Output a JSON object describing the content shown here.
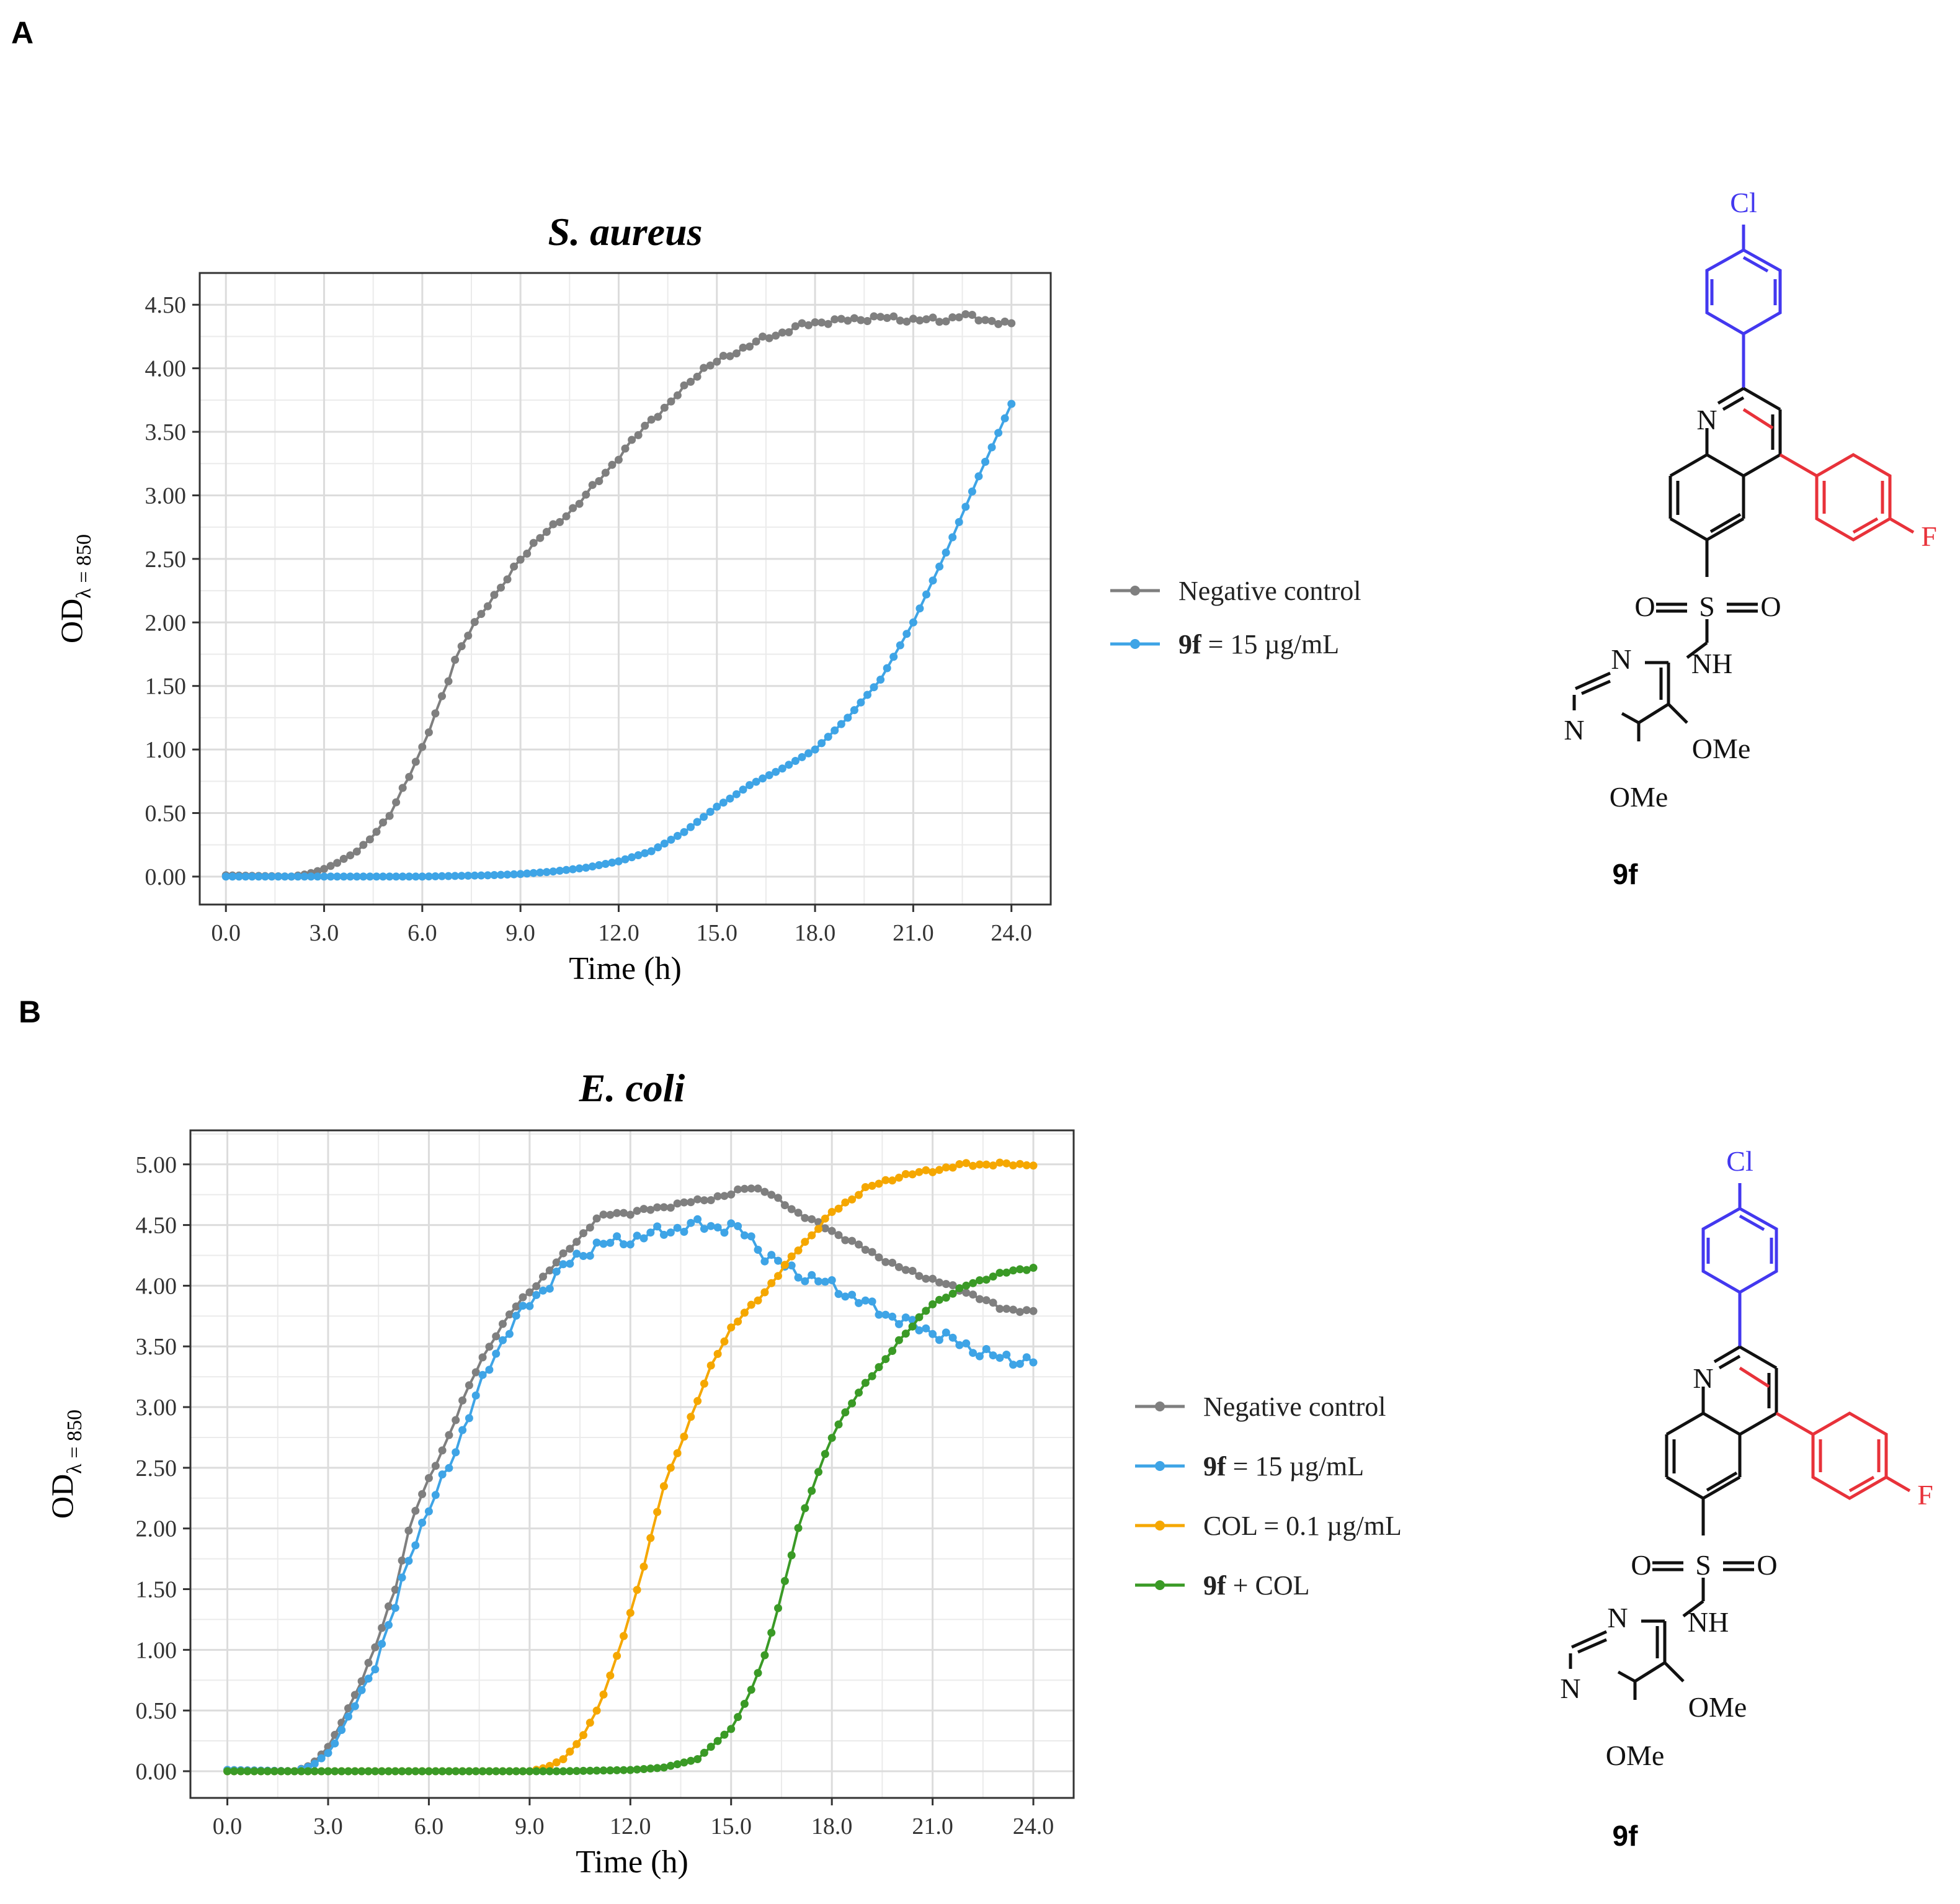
{
  "panels": [
    {
      "letter": "A",
      "compound_label": "9f",
      "chart_data": {
        "type": "line",
        "title": "S. aureus",
        "xlabel": "Time (h)",
        "ylabel_main": "OD",
        "ylabel_sub": "λ = 850",
        "xlim": [
          -0.8,
          25.2
        ],
        "ylim": [
          -0.22,
          4.75
        ],
        "xticks": [
          "0.0",
          "3.0",
          "6.0",
          "9.0",
          "12.0",
          "15.0",
          "18.0",
          "21.0",
          "24.0"
        ],
        "yticks": [
          "0.00",
          "0.50",
          "1.00",
          "1.50",
          "2.00",
          "2.50",
          "3.00",
          "3.50",
          "4.00",
          "4.50"
        ],
        "legend_position": "right",
        "series": [
          {
            "name": "Negative control",
            "color": "#7f7f7f",
            "keypoints": [
              [
                0,
                0.01
              ],
              [
                2,
                0.0
              ],
              [
                2.5,
                0.02
              ],
              [
                3,
                0.06
              ],
              [
                3.5,
                0.12
              ],
              [
                4,
                0.2
              ],
              [
                4.5,
                0.32
              ],
              [
                5,
                0.48
              ],
              [
                5.5,
                0.75
              ],
              [
                6,
                1.0
              ],
              [
                6.5,
                1.35
              ],
              [
                7,
                1.7
              ],
              [
                7.5,
                1.95
              ],
              [
                8,
                2.15
              ],
              [
                8.5,
                2.3
              ],
              [
                9,
                2.5
              ],
              [
                9.5,
                2.65
              ],
              [
                10,
                2.75
              ],
              [
                10.5,
                2.87
              ],
              [
                11,
                3.0
              ],
              [
                11.5,
                3.15
              ],
              [
                12,
                3.3
              ],
              [
                12.5,
                3.45
              ],
              [
                13,
                3.6
              ],
              [
                13.5,
                3.7
              ],
              [
                14,
                3.85
              ],
              [
                14.5,
                3.98
              ],
              [
                15,
                4.05
              ],
              [
                15.5,
                4.12
              ],
              [
                16,
                4.18
              ],
              [
                16.5,
                4.24
              ],
              [
                17,
                4.28
              ],
              [
                17.5,
                4.33
              ],
              [
                18,
                4.36
              ],
              [
                19,
                4.38
              ],
              [
                20,
                4.4
              ],
              [
                21,
                4.38
              ],
              [
                22,
                4.38
              ],
              [
                22.5,
                4.42
              ],
              [
                23,
                4.39
              ],
              [
                23.5,
                4.37
              ],
              [
                24,
                4.34
              ]
            ],
            "noise": 0.02
          },
          {
            "name": "9f = 15 µg/mL",
            "label_bold": "9f",
            "label_rest": " = 15 µg/mL",
            "color": "#3ea4e6",
            "keypoints": [
              [
                0,
                0.0
              ],
              [
                6,
                0.0
              ],
              [
                8,
                0.01
              ],
              [
                9,
                0.02
              ],
              [
                10,
                0.04
              ],
              [
                11,
                0.07
              ],
              [
                12,
                0.12
              ],
              [
                13,
                0.2
              ],
              [
                14,
                0.35
              ],
              [
                15,
                0.55
              ],
              [
                15.5,
                0.63
              ],
              [
                16,
                0.72
              ],
              [
                17,
                0.85
              ],
              [
                18,
                1.0
              ],
              [
                19,
                1.25
              ],
              [
                20,
                1.55
              ],
              [
                21,
                2.0
              ],
              [
                22,
                2.55
              ],
              [
                23,
                3.15
              ],
              [
                24,
                3.72
              ]
            ],
            "noise": 0.0
          }
        ]
      }
    },
    {
      "letter": "B",
      "compound_label": "9f",
      "chart_data": {
        "type": "line",
        "title": "E. coli",
        "xlabel": "Time (h)",
        "ylabel_main": "OD",
        "ylabel_sub": "λ = 850",
        "xlim": [
          -1.1,
          25.2
        ],
        "ylim": [
          -0.22,
          5.28
        ],
        "xticks": [
          "0.0",
          "3.0",
          "6.0",
          "9.0",
          "12.0",
          "15.0",
          "18.0",
          "21.0",
          "24.0"
        ],
        "yticks": [
          "0.00",
          "0.50",
          "1.00",
          "1.50",
          "2.00",
          "2.50",
          "3.00",
          "3.50",
          "4.00",
          "4.50",
          "5.00"
        ],
        "legend_position": "right",
        "series": [
          {
            "name": "Negative control",
            "color": "#7f7f7f",
            "keypoints": [
              [
                0,
                0.01
              ],
              [
                2,
                0.0
              ],
              [
                2.5,
                0.05
              ],
              [
                3,
                0.2
              ],
              [
                3.5,
                0.45
              ],
              [
                4,
                0.75
              ],
              [
                4.5,
                1.1
              ],
              [
                5,
                1.5
              ],
              [
                5.5,
                2.1
              ],
              [
                6,
                2.4
              ],
              [
                6.5,
                2.7
              ],
              [
                7,
                3.05
              ],
              [
                7.5,
                3.35
              ],
              [
                8,
                3.6
              ],
              [
                8.5,
                3.8
              ],
              [
                9,
                3.95
              ],
              [
                9.5,
                4.1
              ],
              [
                10,
                4.25
              ],
              [
                10.5,
                4.4
              ],
              [
                11,
                4.55
              ],
              [
                11.5,
                4.6
              ],
              [
                12,
                4.6
              ],
              [
                13,
                4.65
              ],
              [
                14,
                4.7
              ],
              [
                15,
                4.75
              ],
              [
                15.5,
                4.82
              ],
              [
                16,
                4.78
              ],
              [
                17,
                4.6
              ],
              [
                18,
                4.45
              ],
              [
                19,
                4.3
              ],
              [
                20,
                4.15
              ],
              [
                21,
                4.05
              ],
              [
                22,
                3.95
              ],
              [
                23,
                3.82
              ],
              [
                24,
                3.78
              ]
            ],
            "noise": 0.015
          },
          {
            "name": "9f = 15 µg/mL",
            "label_bold": "9f",
            "label_rest": " = 15 µg/mL",
            "color": "#3ea4e6",
            "keypoints": [
              [
                0,
                0.01
              ],
              [
                2,
                0.0
              ],
              [
                2.5,
                0.04
              ],
              [
                3,
                0.15
              ],
              [
                3.5,
                0.38
              ],
              [
                4,
                0.65
              ],
              [
                4.5,
                0.95
              ],
              [
                5,
                1.35
              ],
              [
                5.5,
                1.85
              ],
              [
                6,
                2.15
              ],
              [
                6.5,
                2.45
              ],
              [
                7,
                2.8
              ],
              [
                7.5,
                3.15
              ],
              [
                8,
                3.45
              ],
              [
                8.5,
                3.7
              ],
              [
                9,
                3.85
              ],
              [
                9.5,
                4.0
              ],
              [
                10,
                4.15
              ],
              [
                10.5,
                4.25
              ],
              [
                11,
                4.33
              ],
              [
                12,
                4.38
              ],
              [
                13,
                4.45
              ],
              [
                14,
                4.5
              ],
              [
                15,
                4.48
              ],
              [
                15.5,
                4.42
              ],
              [
                16,
                4.25
              ],
              [
                17,
                4.1
              ],
              [
                18,
                4.0
              ],
              [
                19,
                3.85
              ],
              [
                20,
                3.72
              ],
              [
                21,
                3.62
              ],
              [
                22,
                3.5
              ],
              [
                23,
                3.4
              ],
              [
                24,
                3.38
              ]
            ],
            "noise": 0.05
          },
          {
            "name": "COL = 0.1 µg/mL",
            "label_bold": "",
            "label_rest": "COL = 0.1 µg/mL",
            "color": "#f5a700",
            "keypoints": [
              [
                0,
                0.0
              ],
              [
                9,
                0.0
              ],
              [
                9.5,
                0.03
              ],
              [
                10,
                0.1
              ],
              [
                10.5,
                0.25
              ],
              [
                11,
                0.5
              ],
              [
                11.5,
                0.85
              ],
              [
                12,
                1.3
              ],
              [
                12.5,
                1.8
              ],
              [
                13,
                2.35
              ],
              [
                13.5,
                2.7
              ],
              [
                14,
                3.05
              ],
              [
                14.5,
                3.4
              ],
              [
                15,
                3.65
              ],
              [
                16,
                3.95
              ],
              [
                17,
                4.3
              ],
              [
                18,
                4.6
              ],
              [
                19,
                4.8
              ],
              [
                20,
                4.9
              ],
              [
                21,
                4.95
              ],
              [
                22,
                5.0
              ],
              [
                23,
                5.0
              ],
              [
                24,
                5.0
              ]
            ],
            "noise": 0.015
          },
          {
            "name": "9f + COL",
            "label_bold": "9f",
            "label_rest": " + COL",
            "color": "#3a9a26",
            "keypoints": [
              [
                0,
                0.0
              ],
              [
                10,
                0.0
              ],
              [
                12,
                0.01
              ],
              [
                13,
                0.03
              ],
              [
                14,
                0.1
              ],
              [
                15,
                0.35
              ],
              [
                15.5,
                0.6
              ],
              [
                16,
                0.95
              ],
              [
                16.5,
                1.45
              ],
              [
                17,
                2.0
              ],
              [
                17.5,
                2.4
              ],
              [
                18,
                2.75
              ],
              [
                18.5,
                3.0
              ],
              [
                19,
                3.2
              ],
              [
                19.5,
                3.35
              ],
              [
                20,
                3.55
              ],
              [
                20.5,
                3.7
              ],
              [
                21,
                3.85
              ],
              [
                22,
                4.0
              ],
              [
                23,
                4.1
              ],
              [
                24,
                4.15
              ]
            ],
            "noise": 0.01
          }
        ]
      }
    }
  ]
}
